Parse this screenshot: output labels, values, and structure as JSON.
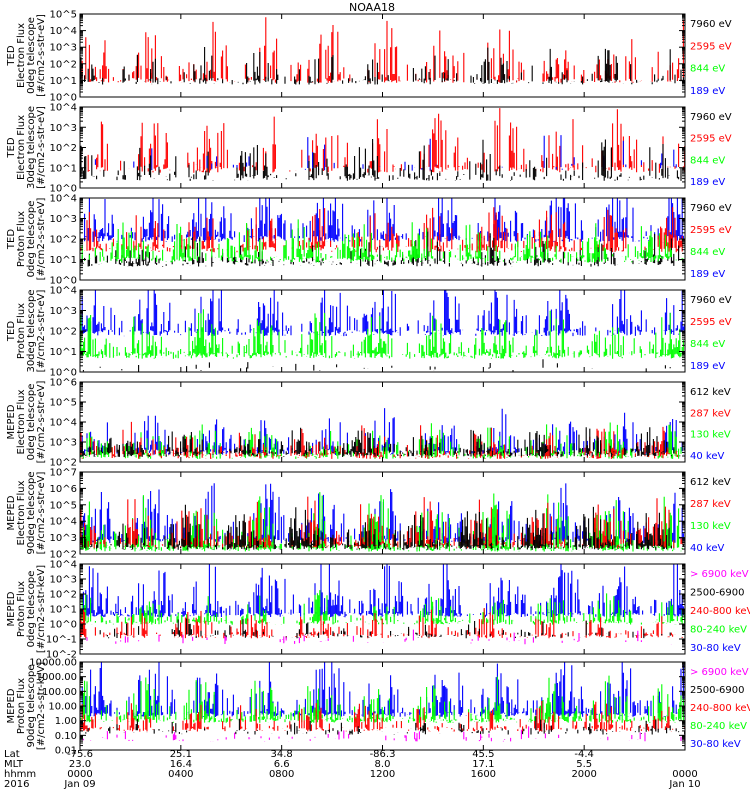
{
  "title": "NOAA18",
  "colors": {
    "blue": "#0000ff",
    "green": "#00ff00",
    "red": "#ff0000",
    "black": "#000000",
    "magenta": "#ff00ff"
  },
  "chart_data": [
    {
      "type": "line",
      "ylabel": [
        "TED",
        "Electron Flux",
        "0deg telescope",
        "[#/cm2-s-str-eV]"
      ],
      "yscale": "log",
      "ylim_exp": [
        0,
        5
      ],
      "tick_labels": [
        "10^0",
        "10^1",
        "10^2",
        "10^3",
        "10^4",
        "10^5"
      ],
      "legend": [
        {
          "label": "7960 eV",
          "color": "black"
        },
        {
          "label": "2595 eV",
          "color": "red"
        },
        {
          "label": "844 eV",
          "color": "green"
        },
        {
          "label": "189 eV",
          "color": "blue"
        }
      ],
      "series": [
        {
          "color": "red",
          "base": 1.0,
          "amp": 2.8,
          "density": 0.55
        },
        {
          "color": "black",
          "base": 0.9,
          "amp": 1.6,
          "density": 0.45
        }
      ]
    },
    {
      "type": "line",
      "ylabel": [
        "TED",
        "Electron Flux",
        "30deg telescope",
        "[#/cm2-s-str-eV]"
      ],
      "yscale": "log",
      "ylim_exp": [
        0,
        4
      ],
      "tick_labels": [
        "10^0",
        "10^1",
        "10^2",
        "10^3",
        "10^4"
      ],
      "legend": [
        {
          "label": "7960 eV",
          "color": "black"
        },
        {
          "label": "2595 eV",
          "color": "red"
        },
        {
          "label": "844 eV",
          "color": "green"
        },
        {
          "label": "189 eV",
          "color": "blue"
        }
      ],
      "series": [
        {
          "color": "red",
          "base": 0.9,
          "amp": 2.3,
          "density": 0.5
        },
        {
          "color": "blue",
          "base": 1.0,
          "amp": 1.5,
          "density": 0.12
        },
        {
          "color": "black",
          "base": 0.5,
          "amp": 1.4,
          "density": 0.45
        }
      ]
    },
    {
      "type": "line",
      "ylabel": [
        "TED",
        "Proton Flux",
        "0deg telescope",
        "[#/cm2-s-str-eV]"
      ],
      "yscale": "log",
      "ylim_exp": [
        0,
        4
      ],
      "tick_labels": [
        "10^0",
        "10^1",
        "10^2",
        "10^3",
        "10^4"
      ],
      "legend": [
        {
          "label": "7960 eV",
          "color": "black"
        },
        {
          "label": "2595 eV",
          "color": "red"
        },
        {
          "label": "844 eV",
          "color": "green"
        },
        {
          "label": "189 eV",
          "color": "blue"
        }
      ],
      "series": [
        {
          "color": "blue",
          "base": 2.0,
          "amp": 2.0,
          "density": 0.85
        },
        {
          "color": "red",
          "base": 1.5,
          "amp": 1.5,
          "density": 0.7
        },
        {
          "color": "black",
          "base": 0.8,
          "amp": 1.2,
          "density": 0.6
        },
        {
          "color": "green",
          "base": 1.0,
          "amp": 1.4,
          "density": 0.95
        }
      ]
    },
    {
      "type": "line",
      "ylabel": [
        "TED",
        "Proton Flux",
        "30deg telescope",
        "[#/cm2-s-str-eV]"
      ],
      "yscale": "log",
      "ylim_exp": [
        0,
        4
      ],
      "tick_labels": [
        "10^0",
        "10^1",
        "10^2",
        "10^3",
        "10^4"
      ],
      "legend": [
        {
          "label": "7960 eV",
          "color": "black"
        },
        {
          "label": "2595 eV",
          "color": "red"
        },
        {
          "label": "844 eV",
          "color": "green"
        },
        {
          "label": "189 eV",
          "color": "blue"
        }
      ],
      "series": [
        {
          "color": "blue",
          "base": 1.9,
          "amp": 1.9,
          "density": 0.8
        },
        {
          "color": "green",
          "base": 0.8,
          "amp": 1.6,
          "density": 0.9
        },
        {
          "color": "black",
          "base": 0.1,
          "amp": 0.4,
          "density": 0.05
        }
      ]
    },
    {
      "type": "line",
      "ylabel": [
        "MEPED",
        "Electron Flux",
        "0deg telescope",
        "[#/cm2-s-str-eV]"
      ],
      "yscale": "log",
      "ylim_exp": [
        2,
        6
      ],
      "tick_labels": [
        "10^2",
        "10^3",
        "10^4",
        "10^5",
        "10^6"
      ],
      "legend": [
        {
          "label": "612 keV",
          "color": "black"
        },
        {
          "label": "287 keV",
          "color": "red"
        },
        {
          "label": "130 keV",
          "color": "green"
        },
        {
          "label": "40 keV",
          "color": "blue"
        }
      ],
      "series": [
        {
          "color": "blue",
          "base": 2.5,
          "amp": 1.5,
          "density": 0.8
        },
        {
          "color": "green",
          "base": 2.3,
          "amp": 1.3,
          "density": 0.7
        },
        {
          "color": "red",
          "base": 2.3,
          "amp": 1.2,
          "density": 0.7
        },
        {
          "color": "black",
          "base": 2.4,
          "amp": 1.0,
          "density": 0.9
        }
      ]
    },
    {
      "type": "line",
      "ylabel": [
        "MEPED",
        "Electron Flux",
        "90deg telescope",
        "[#/cm2-s-str-eV]"
      ],
      "yscale": "log",
      "ylim_exp": [
        2,
        7
      ],
      "tick_labels": [
        "10^2",
        "10^3",
        "10^4",
        "10^5",
        "10^6",
        "10^7"
      ],
      "legend": [
        {
          "label": "612 keV",
          "color": "black"
        },
        {
          "label": "287 keV",
          "color": "red"
        },
        {
          "label": "130 keV",
          "color": "green"
        },
        {
          "label": "40 keV",
          "color": "blue"
        }
      ],
      "series": [
        {
          "color": "blue",
          "base": 2.8,
          "amp": 2.6,
          "density": 0.9
        },
        {
          "color": "green",
          "base": 2.3,
          "amp": 2.5,
          "density": 0.85
        },
        {
          "color": "red",
          "base": 2.5,
          "amp": 2.2,
          "density": 0.8
        },
        {
          "color": "black",
          "base": 2.4,
          "amp": 1.8,
          "density": 0.9
        }
      ]
    },
    {
      "type": "line",
      "ylabel": [
        "MEPED",
        "Proton Flux",
        "0deg telescope",
        "[#/cm2-s-str-keV]"
      ],
      "yscale": "log",
      "ylim_exp": [
        -2,
        4
      ],
      "tick_labels": [
        "10^-2",
        "10^-1",
        "10^0",
        "10^1",
        "10^2",
        "10^3",
        "10^4"
      ],
      "legend": [
        {
          "label": "> 6900 keV",
          "color": "magenta"
        },
        {
          "label": "2500-6900",
          "color": "black"
        },
        {
          "label": "240-800 keV",
          "color": "red"
        },
        {
          "label": "80-240 keV",
          "color": "green"
        },
        {
          "label": "30-80 keV",
          "color": "blue"
        }
      ],
      "series": [
        {
          "color": "blue",
          "base": 0.6,
          "amp": 2.8,
          "density": 0.85
        },
        {
          "color": "green",
          "base": 0.1,
          "amp": 1.5,
          "density": 0.7
        },
        {
          "color": "red",
          "base": -0.8,
          "amp": 1.4,
          "density": 0.6
        },
        {
          "color": "black",
          "base": -0.8,
          "amp": 0.8,
          "density": 0.3
        },
        {
          "color": "magenta",
          "base": -1.2,
          "amp": 0.6,
          "density": 0.15
        }
      ]
    },
    {
      "type": "line",
      "ylabel": [
        "MEPED",
        "Proton Flux",
        "90deg telescope",
        "[#/cm2-s-str-keV]"
      ],
      "yscale": "log",
      "ylim_exp": [
        -2,
        4
      ],
      "tick_labels": [
        "0.01",
        "0.10",
        "1.00",
        "10.00",
        "100.00",
        "1000.00",
        "10000.00"
      ],
      "legend": [
        {
          "label": "> 6900 keV",
          "color": "magenta"
        },
        {
          "label": "2500-6900",
          "color": "black"
        },
        {
          "label": "240-800 keV",
          "color": "red"
        },
        {
          "label": "80-240 keV",
          "color": "green"
        },
        {
          "label": "30-80 keV",
          "color": "blue"
        }
      ],
      "series": [
        {
          "color": "blue",
          "base": 0.4,
          "amp": 3.0,
          "density": 0.9
        },
        {
          "color": "green",
          "base": 0.0,
          "amp": 2.2,
          "density": 0.8
        },
        {
          "color": "red",
          "base": -0.6,
          "amp": 1.5,
          "density": 0.6
        },
        {
          "color": "black",
          "base": -0.8,
          "amp": 0.8,
          "density": 0.3
        },
        {
          "color": "magenta",
          "base": -1.3,
          "amp": 0.6,
          "density": 0.15
        }
      ]
    }
  ],
  "xaxis": {
    "row_labels": [
      "Lat",
      "MLT",
      "hhmm",
      "2016"
    ],
    "ticks": [
      {
        "lat": "-75.6",
        "mlt": "23.0",
        "hhmm": "0000",
        "date": "Jan 09"
      },
      {
        "lat": "25.1",
        "mlt": "16.4",
        "hhmm": "0400",
        "date": ""
      },
      {
        "lat": "34.8",
        "mlt": "6.6",
        "hhmm": "0800",
        "date": ""
      },
      {
        "lat": "-86.3",
        "mlt": "8.0",
        "hhmm": "1200",
        "date": ""
      },
      {
        "lat": "45.5",
        "mlt": "17.1",
        "hhmm": "1600",
        "date": ""
      },
      {
        "lat": "-4.4",
        "mlt": "5.5",
        "hhmm": "2000",
        "date": ""
      },
      {
        "lat": "",
        "mlt": "",
        "hhmm": "0000",
        "date": "Jan 10"
      }
    ]
  }
}
